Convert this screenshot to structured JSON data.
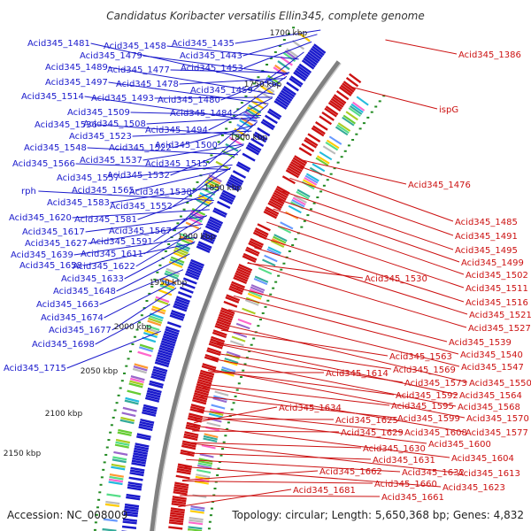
{
  "title": "Candidatus Koribacter versatilis Ellin345, complete genome",
  "footer": {
    "accession": "Accession: NC_008009",
    "topology": "Topology: circular; Length: 5,650,368 bp; Genes: 4,832"
  },
  "colors": {
    "forward": "#1a1acc",
    "reverse": "#cc1111",
    "backbone": "#808080",
    "dots": "#228b22"
  },
  "ticks": [
    "1700 kbp",
    "1750 kbp",
    "1800 kbp",
    "1850 kbp",
    "1900 kbp",
    "1950 kbp",
    "2000 kbp",
    "2050 kbp",
    "2100 kbp",
    "2150 kbp"
  ],
  "left_labels": [
    "Acid345_1481",
    "Acid345_1458",
    "Acid345_1435",
    "Acid345_1479",
    "Acid345_1443",
    "Acid345_1489",
    "Acid345_1477",
    "Acid345_1453",
    "Acid345_1478",
    "Acid345_1497",
    "Acid345_1459",
    "Acid345_1514",
    "Acid345_1493",
    "Acid345_1480",
    "Acid345_1509",
    "Acid345_1484",
    "Acid345_1536",
    "Acid345_1508",
    "Acid345_1494",
    "Acid345_1523",
    "Acid345_1548",
    "Acid345_1522",
    "Acid345_1500",
    "Acid345_1537",
    "Acid345_1566",
    "Acid345_1515",
    "Acid345_1532",
    "Acid345_1557",
    "Acid345_1565",
    "Acid345_1538",
    "rph",
    "Acid345_1583",
    "Acid345_1552",
    "Acid345_1620",
    "Acid345_1581",
    "Acid345_1617",
    "Acid345_1567",
    "Acid345_1627",
    "Acid345_1591",
    "Acid345_1639",
    "Acid345_1611",
    "Acid345_1658",
    "Acid345_1622",
    "Acid345_1633",
    "Acid345_1648",
    "Acid345_1663",
    "Acid345_1674",
    "Acid345_1677",
    "Acid345_1698",
    "Acid345_1715"
  ],
  "right_labels": [
    "Acid345_1386",
    "ispG",
    "Acid345_1476",
    "Acid345_1485",
    "Acid345_1491",
    "Acid345_1495",
    "Acid345_1499",
    "Acid345_1502",
    "Acid345_1511",
    "Acid345_1530",
    "Acid345_1516",
    "Acid345_1521",
    "Acid345_1527",
    "Acid345_1539",
    "Acid345_1563",
    "Acid345_1540",
    "Acid345_1569",
    "Acid345_1547",
    "Acid345_1614",
    "Acid345_1573",
    "Acid345_1550",
    "Acid345_1592",
    "Acid345_1564",
    "Acid345_1634",
    "Acid345_1595",
    "Acid345_1568",
    "Acid345_1599",
    "Acid345_1570",
    "Acid345_1625",
    "Acid345_1608",
    "Acid345_1577",
    "Acid345_1629",
    "Acid345_1600",
    "Acid345_1630",
    "Acid345_1604",
    "Acid345_1631",
    "Acid345_1662",
    "Acid345_1632",
    "Acid345_1613",
    "Acid345_1660",
    "Acid345_1623",
    "Acid345_1681",
    "Acid345_1661"
  ]
}
